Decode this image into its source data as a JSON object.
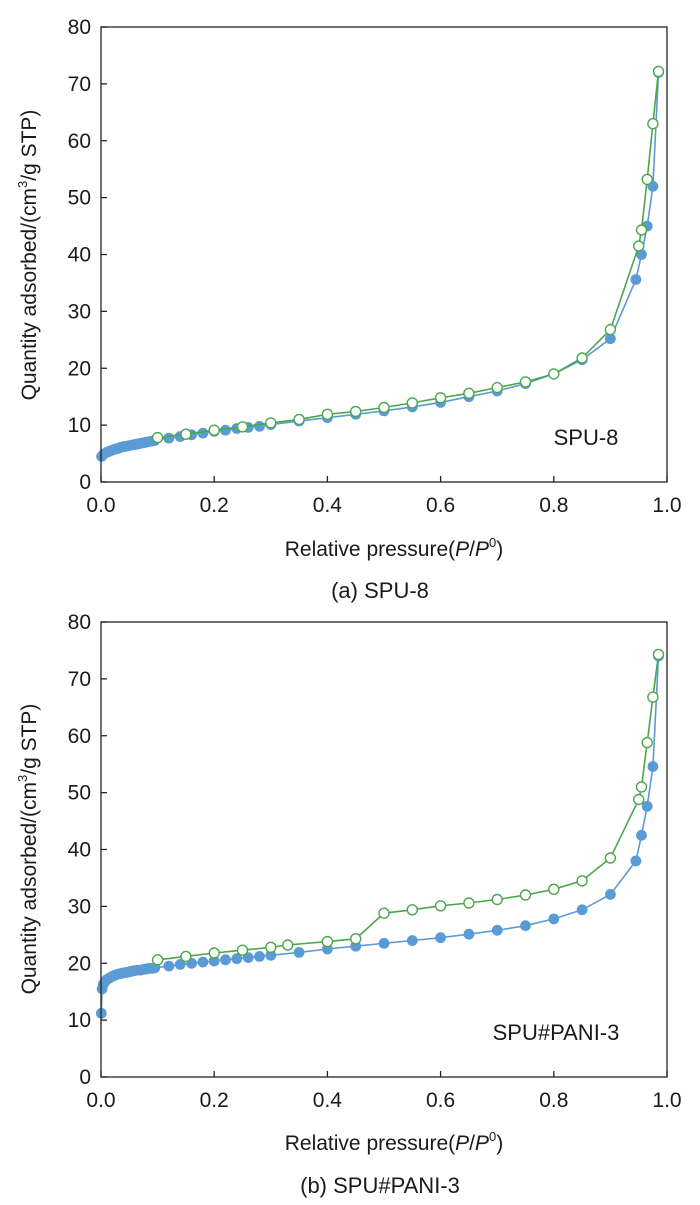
{
  "chart_data": [
    {
      "type": "line",
      "caption": "(a) SPU-8",
      "xlabel": {
        "prefix": "Relative pressure(",
        "p": "P",
        "slash": "/",
        "p0": "P",
        "sup": "0",
        "suffix": ")"
      },
      "ylabel": {
        "prefix": "Quantity adsorbed/(cm",
        "sup": "3",
        "suffix": "/g STP)"
      },
      "xlim": [
        0.0,
        1.0
      ],
      "ylim": [
        0,
        80
      ],
      "xticks": [
        0.0,
        0.2,
        0.4,
        0.6,
        0.8,
        1.0
      ],
      "xtick_labels": [
        "0.0",
        "0.2",
        "0.4",
        "0.6",
        "0.8",
        "1.0"
      ],
      "yticks": [
        0,
        10,
        20,
        30,
        40,
        50,
        60,
        70,
        80
      ],
      "ytick_labels": [
        "0",
        "10",
        "20",
        "30",
        "40",
        "50",
        "60",
        "70",
        "80"
      ],
      "annotation": "SPU-8",
      "grid": false,
      "series": [
        {
          "marker": "filled-circle",
          "color": "#5b9bd5",
          "x": [
            0.001,
            0.005,
            0.01,
            0.015,
            0.02,
            0.025,
            0.03,
            0.035,
            0.04,
            0.045,
            0.05,
            0.055,
            0.06,
            0.065,
            0.07,
            0.075,
            0.08,
            0.085,
            0.09,
            0.095,
            0.12,
            0.14,
            0.16,
            0.18,
            0.2,
            0.22,
            0.24,
            0.26,
            0.28,
            0.3,
            0.35,
            0.4,
            0.45,
            0.5,
            0.55,
            0.6,
            0.65,
            0.7,
            0.75,
            0.8,
            0.85,
            0.9,
            0.945,
            0.955,
            0.965,
            0.975,
            0.985
          ],
          "y": [
            4.5,
            4.9,
            5.2,
            5.4,
            5.6,
            5.8,
            5.9,
            6.1,
            6.2,
            6.3,
            6.4,
            6.5,
            6.6,
            6.7,
            6.8,
            6.9,
            7.0,
            7.1,
            7.2,
            7.3,
            7.7,
            8.0,
            8.3,
            8.6,
            8.9,
            9.1,
            9.4,
            9.6,
            9.8,
            10.1,
            10.7,
            11.3,
            11.9,
            12.5,
            13.2,
            14.0,
            15.0,
            16.0,
            17.3,
            19.0,
            21.5,
            25.2,
            35.6,
            40.0,
            45.0,
            52.0,
            72.0
          ]
        },
        {
          "marker": "open-circle",
          "color": "#4aa84a",
          "x": [
            0.985,
            0.975,
            0.965,
            0.955,
            0.95,
            0.9,
            0.85,
            0.8,
            0.75,
            0.7,
            0.65,
            0.6,
            0.55,
            0.5,
            0.45,
            0.4,
            0.35,
            0.3,
            0.25,
            0.2,
            0.15,
            0.1
          ],
          "y": [
            72.2,
            63.0,
            53.2,
            44.3,
            41.5,
            26.8,
            21.8,
            19.0,
            17.6,
            16.6,
            15.6,
            14.8,
            13.9,
            13.1,
            12.4,
            11.9,
            11.0,
            10.4,
            9.7,
            9.1,
            8.4,
            7.8
          ]
        }
      ]
    },
    {
      "type": "line",
      "caption": "(b) SPU#PANI-3",
      "xlabel": {
        "prefix": "Relative pressure(",
        "p": "P",
        "slash": "/",
        "p0": "P",
        "sup": "0",
        "suffix": ")"
      },
      "ylabel": {
        "prefix": "Quantity adsorbed/(cm",
        "sup": "3",
        "suffix": "/g STP)"
      },
      "xlim": [
        0.0,
        1.0
      ],
      "ylim": [
        0,
        80
      ],
      "xticks": [
        0.0,
        0.2,
        0.4,
        0.6,
        0.8,
        1.0
      ],
      "xtick_labels": [
        "0.0",
        "0.2",
        "0.4",
        "0.6",
        "0.8",
        "1.0"
      ],
      "yticks": [
        0,
        10,
        20,
        30,
        40,
        50,
        60,
        70,
        80
      ],
      "ytick_labels": [
        "0",
        "10",
        "20",
        "30",
        "40",
        "50",
        "60",
        "70",
        "80"
      ],
      "annotation": "SPU#PANI-3",
      "grid": false,
      "series": [
        {
          "marker": "filled-circle",
          "color": "#5b9bd5",
          "x": [
            0.0005,
            0.002,
            0.004,
            0.007,
            0.01,
            0.015,
            0.02,
            0.025,
            0.03,
            0.035,
            0.04,
            0.045,
            0.05,
            0.055,
            0.06,
            0.065,
            0.07,
            0.075,
            0.08,
            0.085,
            0.09,
            0.095,
            0.12,
            0.14,
            0.16,
            0.18,
            0.2,
            0.22,
            0.24,
            0.26,
            0.28,
            0.3,
            0.35,
            0.4,
            0.45,
            0.5,
            0.55,
            0.6,
            0.65,
            0.7,
            0.75,
            0.8,
            0.85,
            0.9,
            0.945,
            0.955,
            0.965,
            0.975,
            0.985
          ],
          "y": [
            11.2,
            15.5,
            16.3,
            16.8,
            17.1,
            17.4,
            17.7,
            17.9,
            18.1,
            18.2,
            18.3,
            18.4,
            18.5,
            18.6,
            18.7,
            18.8,
            18.8,
            18.9,
            19.0,
            19.1,
            19.1,
            19.2,
            19.5,
            19.8,
            20.0,
            20.2,
            20.4,
            20.6,
            20.8,
            21.0,
            21.2,
            21.4,
            21.9,
            22.5,
            23.0,
            23.5,
            24.0,
            24.5,
            25.1,
            25.8,
            26.6,
            27.8,
            29.4,
            32.1,
            38.0,
            42.5,
            47.6,
            54.6,
            74.0
          ]
        },
        {
          "marker": "open-circle",
          "color": "#4aa84a",
          "x": [
            0.985,
            0.975,
            0.965,
            0.955,
            0.95,
            0.9,
            0.85,
            0.8,
            0.75,
            0.7,
            0.65,
            0.6,
            0.55,
            0.5,
            0.45,
            0.4,
            0.33,
            0.3,
            0.25,
            0.2,
            0.15,
            0.1
          ],
          "y": [
            74.3,
            66.8,
            58.8,
            51.0,
            48.8,
            38.5,
            34.5,
            33.0,
            32.0,
            31.2,
            30.6,
            30.1,
            29.4,
            28.8,
            24.3,
            23.8,
            23.2,
            22.8,
            22.3,
            21.8,
            21.2,
            20.6
          ]
        }
      ]
    }
  ]
}
